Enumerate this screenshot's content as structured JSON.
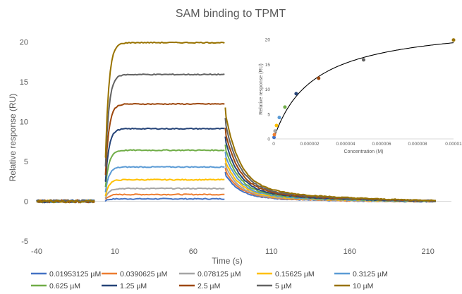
{
  "chart_data": [
    {
      "type": "line",
      "title": "SAM binding to TPMT",
      "xlabel": "Time (s)",
      "ylabel": "Relative response (RU)",
      "xlim": [
        -40,
        225
      ],
      "ylim": [
        -5,
        21
      ],
      "x_ticks": [
        -40,
        10,
        60,
        110,
        160,
        210
      ],
      "y_ticks": [
        -5,
        0,
        5,
        10,
        15,
        20
      ],
      "grid": false,
      "legend_position": "bottom",
      "injection_start": 4,
      "injection_end": 80,
      "series": [
        {
          "name": "0.01953125 µM",
          "color": "#4472C4",
          "plateau": 0.3
        },
        {
          "name": "0.0390625 µM",
          "color": "#ED7D31",
          "plateau": 0.85
        },
        {
          "name": "0.078125 µM",
          "color": "#A5A5A5",
          "plateau": 1.6
        },
        {
          "name": "0.15625 µM",
          "color": "#FFC000",
          "plateau": 2.7
        },
        {
          "name": "0.3125 µM",
          "color": "#5B9BD5",
          "plateau": 4.3
        },
        {
          "name": "0.625 µM",
          "color": "#70AD47",
          "plateau": 6.4
        },
        {
          "name": "1.25 µM",
          "color": "#264478",
          "plateau": 9.1
        },
        {
          "name": "2.5 µM",
          "color": "#9E480E",
          "plateau": 12.2
        },
        {
          "name": "5 µM",
          "color": "#636363",
          "plateau": 15.9
        },
        {
          "name": "10 µM",
          "color": "#997300",
          "plateau": 19.9
        }
      ]
    },
    {
      "type": "scatter",
      "xlabel": "Concentration (M)",
      "ylabel": "Relative response (RU)",
      "xlim": [
        0,
        1e-05
      ],
      "ylim": [
        0,
        20
      ],
      "x_ticks": [
        "0",
        "0.000002",
        "0.000004",
        "0.000006",
        "0.000008",
        "0.00001"
      ],
      "y_ticks": [
        0,
        5,
        10,
        15,
        20
      ],
      "grid": false,
      "points": [
        {
          "x": 1.953125e-08,
          "y": 0.3,
          "color": "#4472C4"
        },
        {
          "x": 3.90625e-08,
          "y": 0.85,
          "color": "#ED7D31"
        },
        {
          "x": 7.8125e-08,
          "y": 1.6,
          "color": "#A5A5A5"
        },
        {
          "x": 1.5625e-07,
          "y": 2.7,
          "color": "#FFC000"
        },
        {
          "x": 3.125e-07,
          "y": 4.3,
          "color": "#5B9BD5"
        },
        {
          "x": 6.25e-07,
          "y": 6.4,
          "color": "#70AD47"
        },
        {
          "x": 1.25e-06,
          "y": 9.1,
          "color": "#264478"
        },
        {
          "x": 2.5e-06,
          "y": 12.2,
          "color": "#9E480E"
        },
        {
          "x": 5e-06,
          "y": 15.9,
          "color": "#636363"
        },
        {
          "x": 1e-05,
          "y": 19.9,
          "color": "#997300"
        }
      ],
      "fit": {
        "type": "one-site binding",
        "Bmax": 23.6,
        "Kd": 2.2e-06,
        "color": "#000000"
      }
    }
  ]
}
